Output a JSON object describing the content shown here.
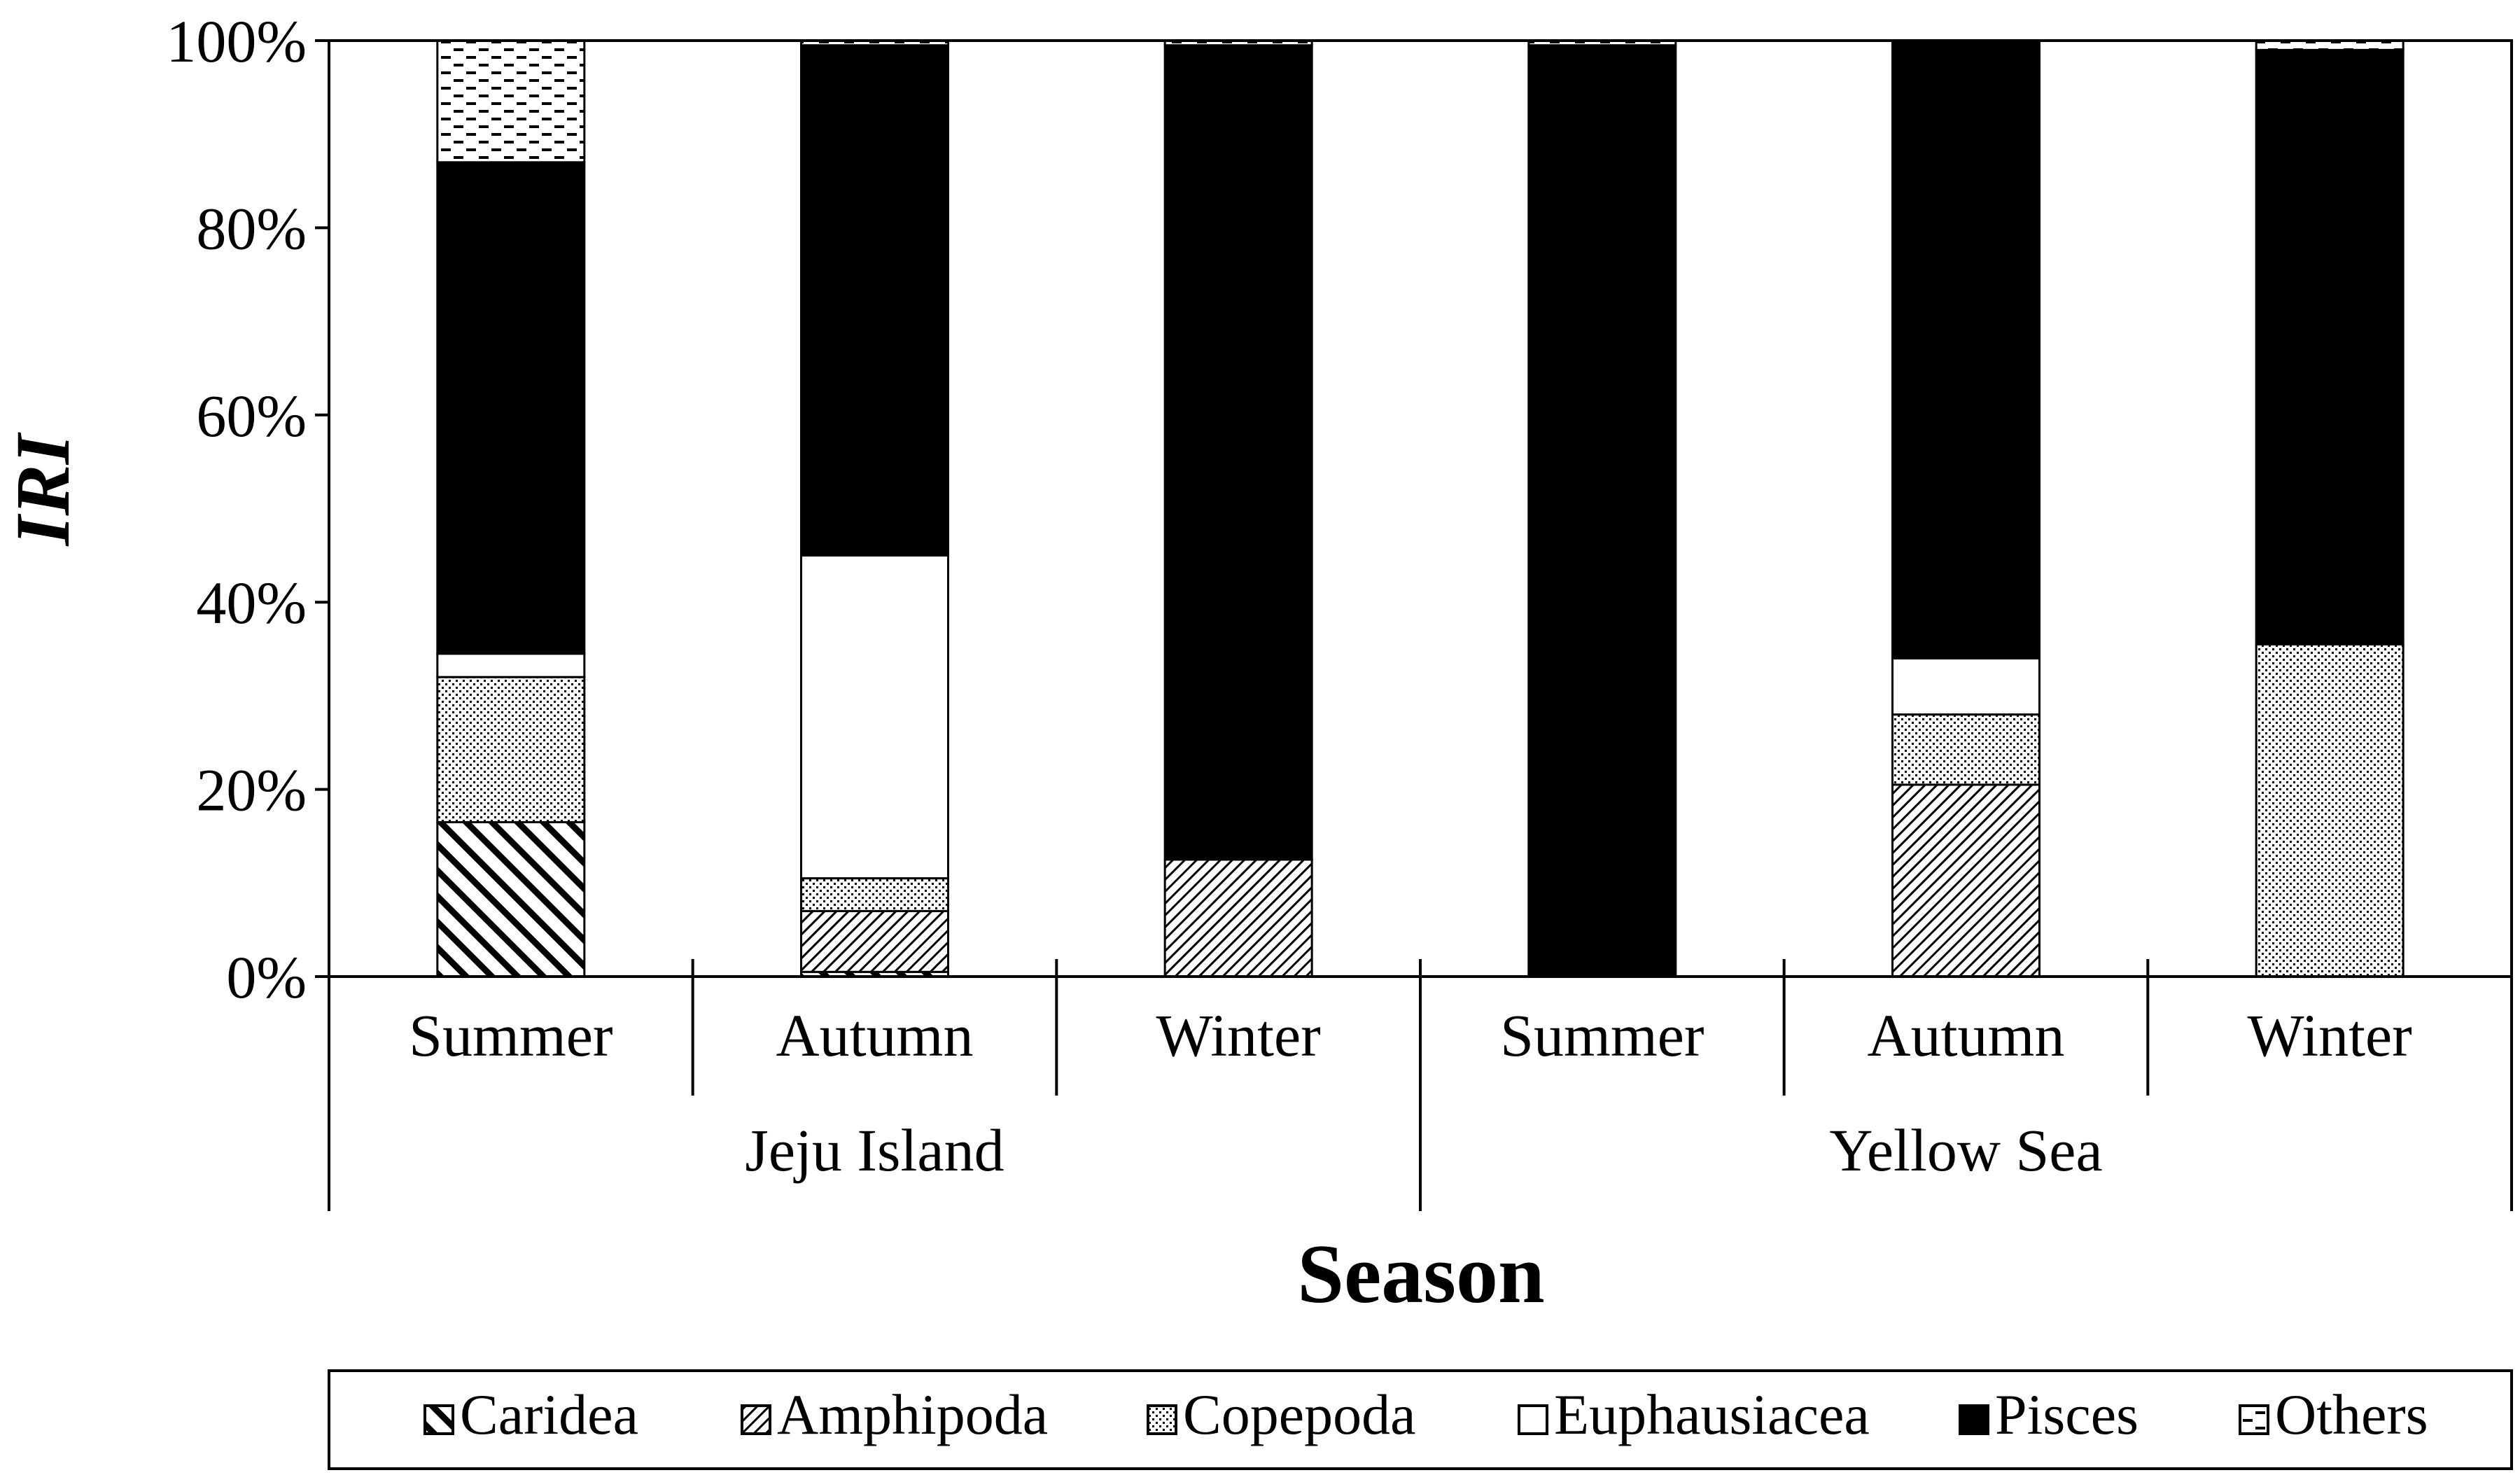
{
  "chart_data": {
    "type": "bar",
    "stacked": true,
    "percent": true,
    "ylabel": "IRI",
    "xlabel": "Season",
    "ylim": [
      0,
      100
    ],
    "y_ticks": [
      "0%",
      "20%",
      "40%",
      "60%",
      "80%",
      "100%"
    ],
    "categories": [
      "Summer",
      "Autumn",
      "Winter",
      "Summer",
      "Autumn",
      "Winter"
    ],
    "groups": [
      {
        "label": "Jeju Island",
        "categories": [
          "Summer",
          "Autumn",
          "Winter"
        ]
      },
      {
        "label": "Yellow Sea",
        "categories": [
          "Summer",
          "Autumn",
          "Winter"
        ]
      }
    ],
    "series": [
      {
        "name": "Caridea",
        "pattern": "wide-diagonal",
        "values": [
          16.5,
          0.5,
          0,
          0,
          0,
          0
        ]
      },
      {
        "name": "Amphipoda",
        "pattern": "fine-diagonal",
        "values": [
          0,
          6.5,
          12.5,
          0,
          20.5,
          0
        ]
      },
      {
        "name": "Copepoda",
        "pattern": "dots",
        "values": [
          15.5,
          3.5,
          0,
          0,
          7.5,
          35.5
        ]
      },
      {
        "name": "Euphausiacea",
        "pattern": "white",
        "values": [
          2.5,
          34.5,
          0,
          0,
          6,
          0
        ]
      },
      {
        "name": "Pisces",
        "pattern": "solid-black",
        "values": [
          52.5,
          54.5,
          87,
          99.5,
          66,
          63.5
        ]
      },
      {
        "name": "Others",
        "pattern": "dashes",
        "values": [
          13,
          0.5,
          0.5,
          0.5,
          0,
          1
        ]
      }
    ],
    "legend_position": "bottom",
    "grid": false
  }
}
